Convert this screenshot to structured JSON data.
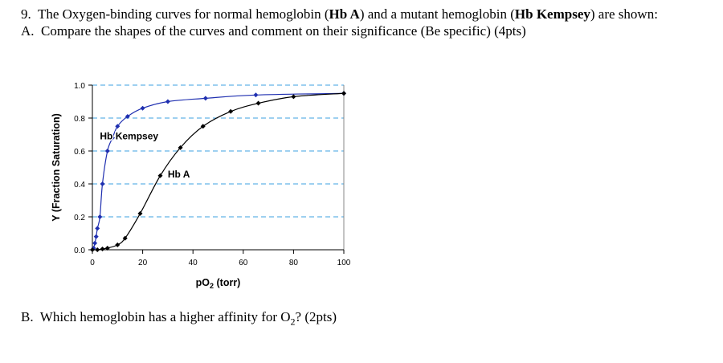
{
  "question": {
    "number": "9.",
    "intro": "The Oxygen-binding curves for normal hemoglobin (",
    "hba": "Hb A",
    "mid": ") and a mutant hemoglobin (",
    "hbk": "Hb Kempsey",
    "end": ") are shown:",
    "part_a_letter": "A.",
    "part_a": "Compare the shapes of the curves and comment on their significance (Be specific) (4pts)",
    "part_b_letter": "B.",
    "part_b_pre": "Which hemoglobin has a higher affinity for O",
    "part_b_sub": "2",
    "part_b_post": "? (2pts)"
  },
  "chart_data": {
    "type": "line",
    "xlabel": "pO2 (torr)",
    "ylabel": "Y (Fraction Saturation)",
    "xlim": [
      0,
      100
    ],
    "ylim": [
      0,
      1.0
    ],
    "xticks": [
      0,
      20,
      40,
      60,
      80,
      100
    ],
    "yticks": [
      0.0,
      0.2,
      0.4,
      0.6,
      0.8,
      1.0
    ],
    "gridlines": [
      0.2,
      0.4,
      0.6,
      0.8,
      1.0
    ],
    "series": [
      {
        "name": "Hb Kempsey",
        "color": "#1f2fb0",
        "x": [
          0.5,
          1,
          1.5,
          2,
          3,
          4,
          6,
          8,
          10,
          14,
          20,
          30,
          45,
          65,
          100
        ],
        "y": [
          0.01,
          0.04,
          0.08,
          0.13,
          0.2,
          0.4,
          0.6,
          0.68,
          0.75,
          0.81,
          0.86,
          0.9,
          0.92,
          0.94,
          0.95
        ]
      },
      {
        "name": "Hb A",
        "color": "#000000",
        "x": [
          0,
          2,
          4,
          6,
          10,
          13,
          19,
          27,
          35,
          44,
          55,
          66,
          80,
          100
        ],
        "y": [
          0.0,
          0.0,
          0.005,
          0.01,
          0.03,
          0.07,
          0.22,
          0.45,
          0.62,
          0.75,
          0.84,
          0.89,
          0.93,
          0.95
        ]
      }
    ],
    "annotations": [
      {
        "text": "Hb Kempsey",
        "x": 3,
        "y": 0.67
      },
      {
        "text": "Hb A",
        "x": 30,
        "y": 0.44
      }
    ],
    "gridline_color": "#3da0e0",
    "grid": "horizontal dashed",
    "legend": "none (inline labels)"
  }
}
